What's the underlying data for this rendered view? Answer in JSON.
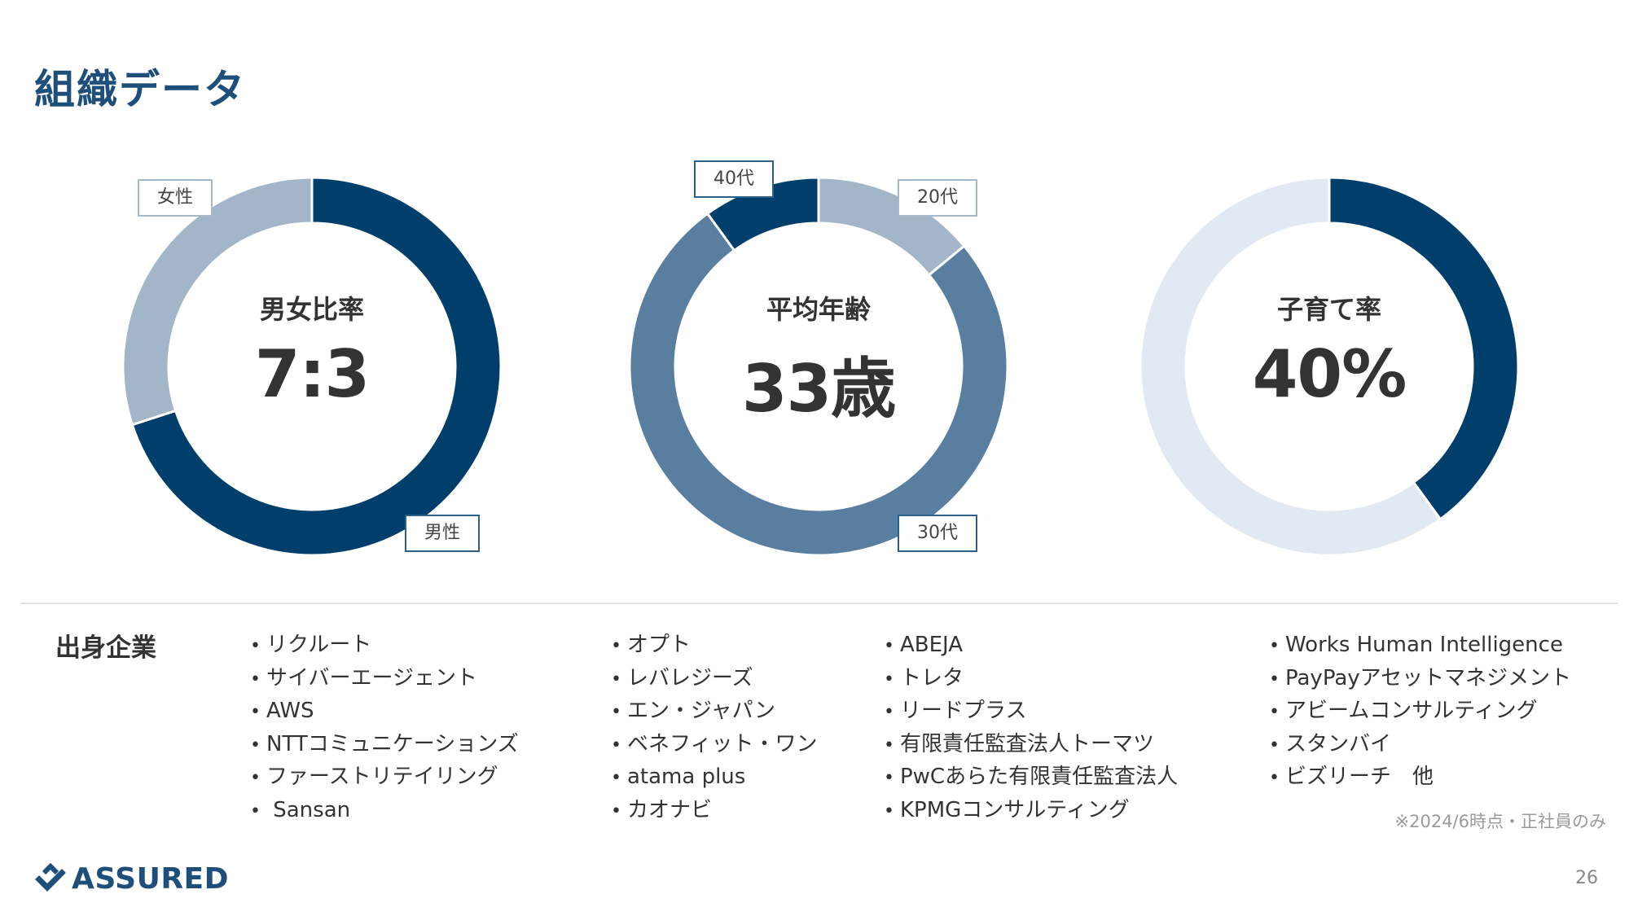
{
  "title": "組織データ",
  "chart_data": [
    {
      "type": "pie",
      "center_label": "男女比率",
      "center_value": "7:3",
      "categories": [
        "男性",
        "女性"
      ],
      "values": [
        70,
        30
      ],
      "colors": [
        "#003f6b",
        "#a3b5c8"
      ]
    },
    {
      "type": "pie",
      "center_label": "平均年齢",
      "center_value": "33歳",
      "categories": [
        "20代",
        "30代",
        "40代"
      ],
      "values": [
        14,
        76,
        10
      ],
      "colors": [
        "#a3b5c8",
        "#5a7e9f",
        "#003f6b"
      ]
    },
    {
      "type": "pie",
      "center_label": "子育て率",
      "center_value": "40%",
      "values": [
        40,
        60
      ],
      "colors": [
        "#003f6b",
        "#e1e9f2"
      ]
    }
  ],
  "companies": {
    "heading": "出身企業",
    "columns": [
      [
        "リクルート",
        "サイバーエージェント",
        "AWS",
        "NTTコミュニケーションズ",
        "ファーストリテイリング",
        " Sansan"
      ],
      [
        "オプト",
        "レバレジーズ",
        "エン・ジャパン",
        "ベネフィット・ワン",
        "atama plus",
        "カオナビ"
      ],
      [
        "ABEJA",
        "トレタ",
        "リードプラス",
        "有限責任監査法人トーマツ",
        "PwCあらた有限責任監査法人",
        "KPMGコンサルティング"
      ],
      [
        "Works Human Intelligence",
        "PayPayアセットマネジメント",
        "アビームコンサルティング",
        "スタンバイ",
        "ビズリーチ　他"
      ]
    ]
  },
  "footnote": "※2024/6時点・正社員のみ",
  "logo_text": "ASSURED",
  "page_number": "26",
  "colors": {
    "brand": "#1d4f7a"
  }
}
